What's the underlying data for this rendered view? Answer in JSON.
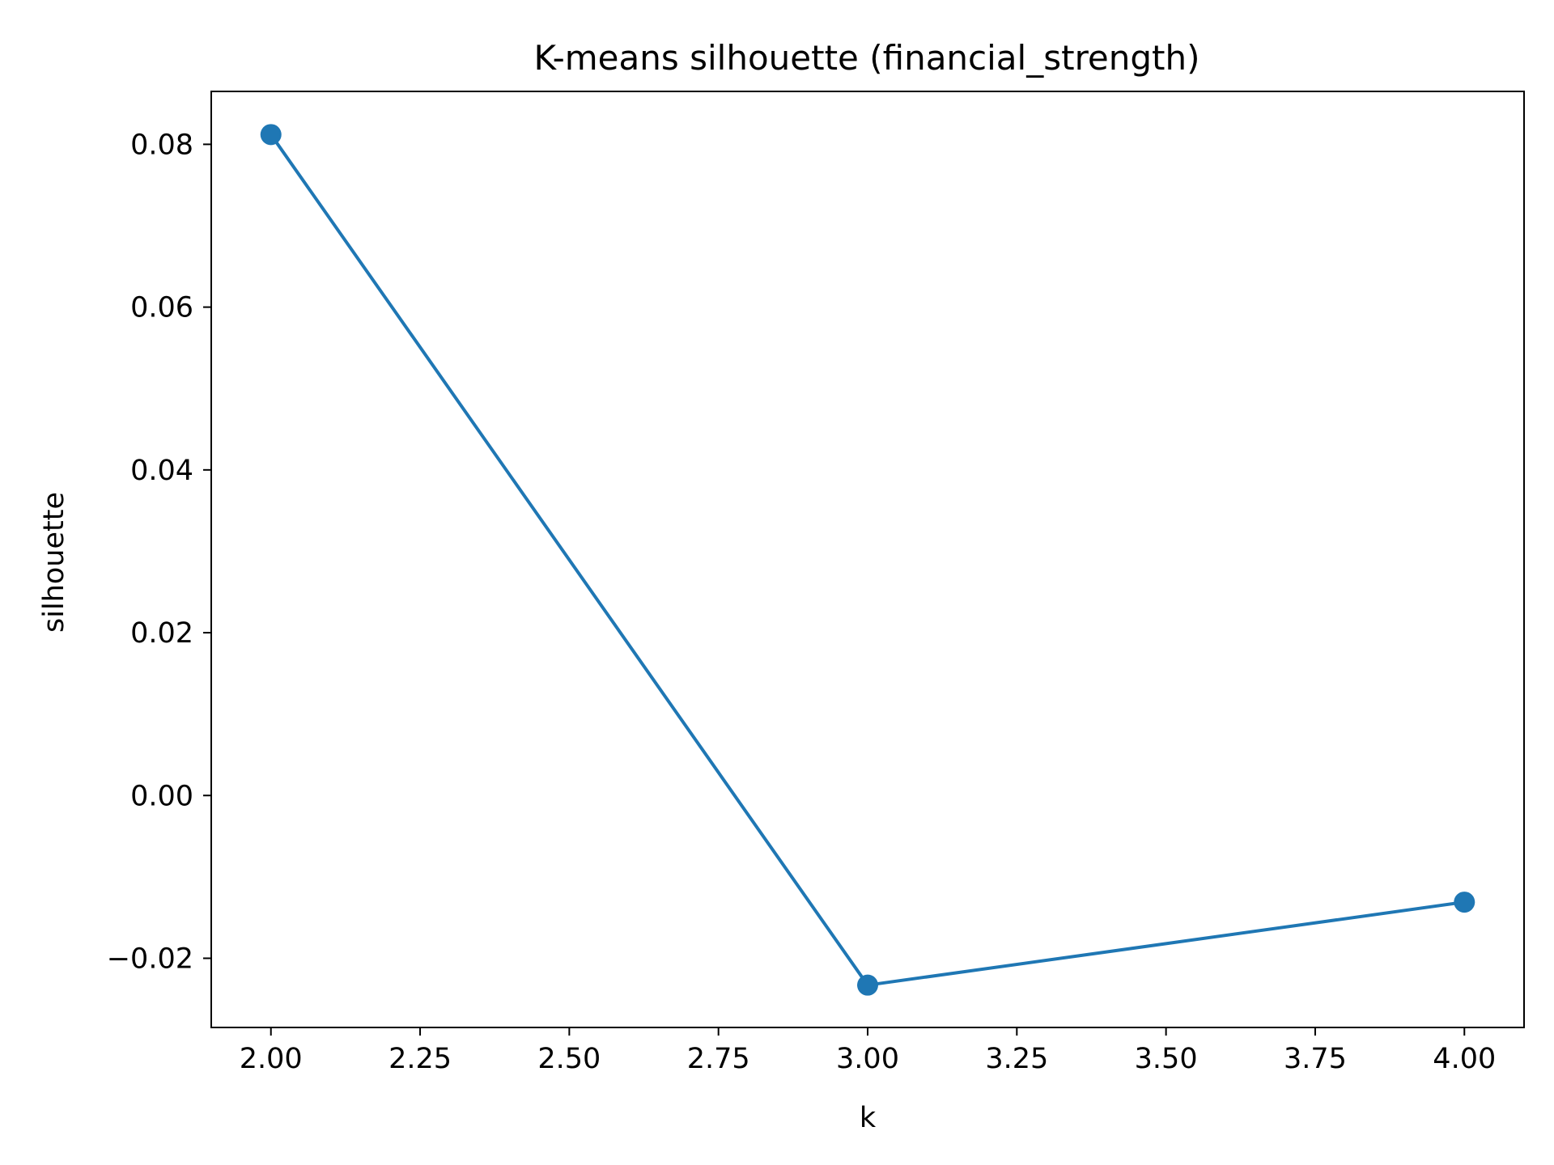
{
  "chart_data": {
    "type": "line",
    "title": "K-means silhouette (financial_strength)",
    "xlabel": "k",
    "ylabel": "silhouette",
    "xlim": [
      1.9,
      4.1
    ],
    "ylim": [
      -0.0285,
      0.0865
    ],
    "xticks": [
      2.0,
      2.25,
      2.5,
      2.75,
      3.0,
      3.25,
      3.5,
      3.75,
      4.0
    ],
    "xtick_labels": [
      "2.00",
      "2.25",
      "2.50",
      "2.75",
      "3.00",
      "3.25",
      "3.50",
      "3.75",
      "4.00"
    ],
    "yticks": [
      -0.02,
      0.0,
      0.02,
      0.04,
      0.06,
      0.08
    ],
    "ytick_labels": [
      "−0.02",
      "0.00",
      "0.02",
      "0.04",
      "0.06",
      "0.08"
    ],
    "grid": false,
    "legend": "none",
    "series": [
      {
        "x": [
          2,
          3,
          4
        ],
        "y": [
          0.0812,
          -0.0233,
          -0.0131
        ],
        "color": "#1f77b4",
        "marker": "circle"
      }
    ]
  }
}
